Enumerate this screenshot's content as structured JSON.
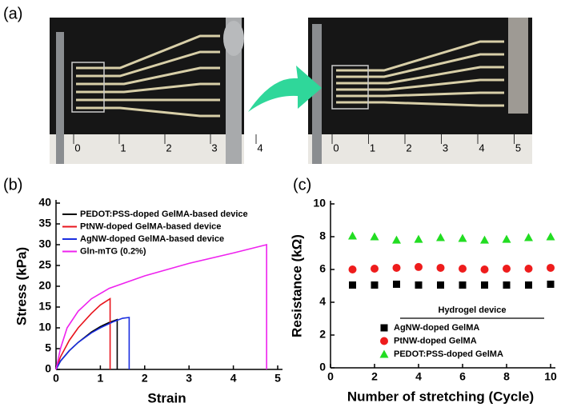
{
  "panel_labels": [
    "(a)",
    "(b)",
    "(c)"
  ],
  "photos": [
    {
      "ruler_labels": [
        0,
        1,
        2,
        3,
        4
      ]
    },
    {
      "ruler_labels": [
        0,
        1,
        2,
        3,
        4,
        5
      ]
    }
  ],
  "chart_data": [
    {
      "type": "line",
      "xlabel": "Strain",
      "ylabel": "Stress (kPa)",
      "xlim": [
        0,
        5
      ],
      "xticks": [
        0,
        1,
        2,
        3,
        4,
        5
      ],
      "ylim": [
        0,
        40
      ],
      "yticks": [
        0,
        5,
        10,
        15,
        20,
        25,
        30,
        35,
        40
      ],
      "legend": "upper left",
      "series": [
        {
          "name": "PEDOT:PSS-doped GelMA-based device",
          "color": "#000000",
          "x": [
            0,
            0.1,
            0.3,
            0.5,
            0.8,
            1.0,
            1.2,
            1.38,
            1.38
          ],
          "values": [
            0,
            2,
            4.5,
            6.5,
            9,
            10.3,
            11.3,
            12,
            0
          ]
        },
        {
          "name": "PtNW-doped GelMA-based device",
          "color": "#e8141c",
          "x": [
            0,
            0.1,
            0.3,
            0.5,
            0.8,
            1.0,
            1.22,
            1.22
          ],
          "values": [
            0,
            3,
            7,
            10,
            13.5,
            15.5,
            17,
            0
          ]
        },
        {
          "name": "AgNW-doped GelMA-based device",
          "color": "#1a2ee0",
          "x": [
            0,
            0.1,
            0.3,
            0.5,
            0.8,
            1.0,
            1.3,
            1.5,
            1.65,
            1.65
          ],
          "values": [
            0,
            2,
            4.5,
            6.5,
            8.8,
            10,
            11.5,
            12.3,
            12.5,
            0
          ]
        },
        {
          "name": "Gln-mTG (0.2%)",
          "color": "#ee22ee",
          "x": [
            0,
            0.1,
            0.25,
            0.5,
            0.8,
            1.2,
            2,
            3,
            4,
            4.75,
            4.75
          ],
          "values": [
            0,
            5,
            10,
            14,
            17,
            19.5,
            22.5,
            25.5,
            28,
            30,
            0
          ]
        }
      ]
    },
    {
      "type": "scatter",
      "xlabel": "Number of stretching (Cycle)",
      "ylabel": "Resistance (kΩ)",
      "xlim": [
        0,
        10
      ],
      "xticks": [
        0,
        2,
        4,
        6,
        8,
        10
      ],
      "ylim": [
        0,
        10
      ],
      "yticks": [
        0,
        2,
        4,
        6,
        8,
        10
      ],
      "legend": "lower right",
      "legend_title": "Hydrogel device",
      "x": [
        1,
        2,
        3,
        4,
        5,
        6,
        7,
        8,
        9,
        10
      ],
      "series": [
        {
          "name": "AgNW-doped GelMA",
          "color": "#000000",
          "marker": "square",
          "values": [
            5.05,
            5.05,
            5.1,
            5.05,
            5.05,
            5.05,
            5.05,
            5.05,
            5.05,
            5.1
          ]
        },
        {
          "name": "PtNW-doped GelMA",
          "color": "#ee1c1c",
          "marker": "circle",
          "values": [
            6.0,
            6.05,
            6.1,
            6.15,
            6.1,
            6.05,
            6.0,
            6.05,
            6.05,
            6.1
          ]
        },
        {
          "name": "PEDOT:PSS-doped GelMA",
          "color": "#22dd22",
          "marker": "triangle",
          "values": [
            8.05,
            8.0,
            7.8,
            7.85,
            7.95,
            7.9,
            7.8,
            7.85,
            7.95,
            8.0
          ]
        }
      ]
    }
  ]
}
